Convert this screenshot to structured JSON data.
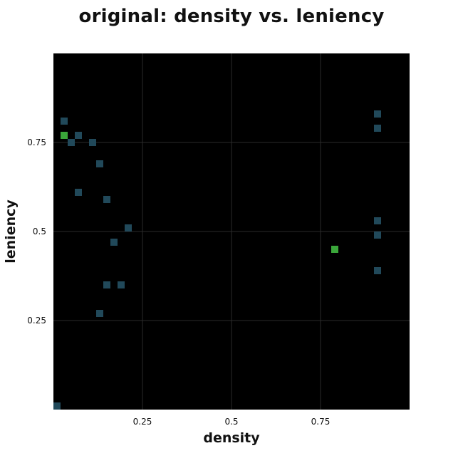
{
  "chart_data": {
    "type": "scatter",
    "title": "original: density vs. leniency",
    "xlabel": "density",
    "ylabel": "leniency",
    "xlim": [
      0,
      1
    ],
    "ylim": [
      0,
      1
    ],
    "xticks": [
      0.25,
      0.5,
      0.75
    ],
    "yticks": [
      0.25,
      0.5,
      0.75
    ],
    "xtick_labels": [
      "0.25",
      "0.5",
      "0.75"
    ],
    "ytick_labels": [
      "0.25",
      "0.5",
      "0.75"
    ],
    "grid": true,
    "background": "#000000",
    "grid_color": "#2a2a2a",
    "series": [
      {
        "color": "#21495a",
        "points": [
          {
            "x": 0.03,
            "y": 0.81
          },
          {
            "x": 0.05,
            "y": 0.75
          },
          {
            "x": 0.07,
            "y": 0.77
          },
          {
            "x": 0.11,
            "y": 0.75
          },
          {
            "x": 0.13,
            "y": 0.69
          },
          {
            "x": 0.07,
            "y": 0.61
          },
          {
            "x": 0.15,
            "y": 0.59
          },
          {
            "x": 0.21,
            "y": 0.51
          },
          {
            "x": 0.17,
            "y": 0.47
          },
          {
            "x": 0.15,
            "y": 0.35
          },
          {
            "x": 0.19,
            "y": 0.35
          },
          {
            "x": 0.13,
            "y": 0.27
          },
          {
            "x": 0.01,
            "y": 0.01
          },
          {
            "x": 0.91,
            "y": 0.83
          },
          {
            "x": 0.91,
            "y": 0.79
          },
          {
            "x": 0.91,
            "y": 0.53
          },
          {
            "x": 0.91,
            "y": 0.49
          },
          {
            "x": 0.91,
            "y": 0.39
          }
        ]
      },
      {
        "color": "#3aa63a",
        "points": [
          {
            "x": 0.03,
            "y": 0.77
          },
          {
            "x": 0.79,
            "y": 0.45
          }
        ]
      }
    ]
  }
}
